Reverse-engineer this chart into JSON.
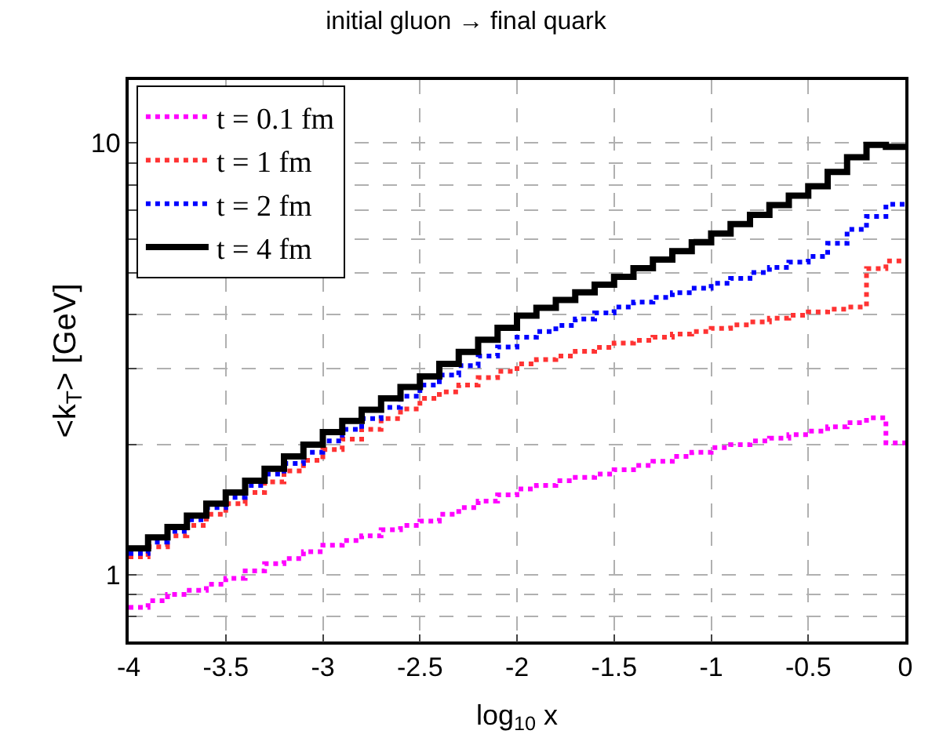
{
  "chart_data": {
    "type": "histogram",
    "title": "initial gluon → final quark",
    "xlabel": "log$_{10}$ x",
    "ylabel": "<k$_{T}$> [GeV]",
    "bins": [
      -4.0,
      -3.9,
      -3.8,
      -3.7,
      -3.6,
      -3.5,
      -3.4,
      -3.3,
      -3.2,
      -3.1,
      -3.0,
      -2.9,
      -2.8,
      -2.7,
      -2.6,
      -2.5,
      -2.4,
      -2.3,
      -2.2,
      -2.1,
      -2.0,
      -1.9,
      -1.8,
      -1.7,
      -1.6,
      -1.5,
      -1.4,
      -1.3,
      -1.2,
      -1.1,
      -1.0,
      -0.9,
      -0.8,
      -0.7,
      -0.6,
      -0.5,
      -0.4,
      -0.3,
      -0.2,
      -0.1,
      0.0
    ],
    "series": [
      {
        "name": "t = 0.1 fm",
        "color": "#ff00ff",
        "line_style": "dotted",
        "values": [
          0.84,
          0.87,
          0.9,
          0.92,
          0.95,
          0.98,
          1.02,
          1.06,
          1.09,
          1.13,
          1.17,
          1.2,
          1.23,
          1.27,
          1.3,
          1.33,
          1.38,
          1.43,
          1.48,
          1.53,
          1.58,
          1.61,
          1.65,
          1.68,
          1.71,
          1.75,
          1.79,
          1.83,
          1.88,
          1.92,
          1.97,
          2.0,
          2.04,
          2.07,
          2.11,
          2.15,
          2.2,
          2.25,
          2.31,
          2.02
        ]
      },
      {
        "name": "t = 1 fm",
        "color": "#ff3333",
        "line_style": "dotted",
        "values": [
          1.1,
          1.16,
          1.23,
          1.3,
          1.38,
          1.46,
          1.55,
          1.64,
          1.74,
          1.84,
          1.95,
          2.06,
          2.17,
          2.3,
          2.42,
          2.56,
          2.65,
          2.75,
          2.86,
          2.96,
          3.08,
          3.15,
          3.21,
          3.29,
          3.36,
          3.44,
          3.49,
          3.55,
          3.61,
          3.66,
          3.72,
          3.79,
          3.85,
          3.93,
          3.99,
          4.06,
          4.12,
          4.17,
          5.12,
          5.33
        ]
      },
      {
        "name": "t = 2 fm",
        "color": "#0000ff",
        "line_style": "dotted",
        "values": [
          1.12,
          1.19,
          1.26,
          1.34,
          1.43,
          1.51,
          1.61,
          1.71,
          1.81,
          1.92,
          2.04,
          2.17,
          2.3,
          2.44,
          2.59,
          2.75,
          2.9,
          3.05,
          3.21,
          3.37,
          3.55,
          3.66,
          3.78,
          3.91,
          4.04,
          4.17,
          4.28,
          4.39,
          4.5,
          4.61,
          4.73,
          4.86,
          5.01,
          5.15,
          5.3,
          5.46,
          5.86,
          6.31,
          6.76,
          7.21
        ]
      },
      {
        "name": "t = 4 fm",
        "color": "#000000",
        "line_style": "solid",
        "values": [
          1.15,
          1.22,
          1.29,
          1.37,
          1.46,
          1.55,
          1.65,
          1.76,
          1.88,
          2.0,
          2.14,
          2.27,
          2.41,
          2.56,
          2.72,
          2.88,
          3.08,
          3.28,
          3.5,
          3.73,
          3.98,
          4.15,
          4.33,
          4.51,
          4.7,
          4.9,
          5.13,
          5.37,
          5.62,
          5.89,
          6.17,
          6.49,
          6.82,
          7.18,
          7.55,
          7.94,
          8.57,
          9.27,
          9.9,
          9.8
        ]
      }
    ],
    "xlim": [
      -4,
      0
    ],
    "xticks": [
      -4,
      -3.5,
      -3,
      -2.5,
      -2,
      -1.5,
      -1,
      -0.5,
      0
    ],
    "ylim": [
      0.7,
      14
    ],
    "log": "y",
    "yticks": [
      {
        "value": 0.7,
        "label": null
      },
      {
        "value": 0.8,
        "label": null
      },
      {
        "value": 0.9,
        "label": null
      },
      1,
      {
        "value": 2,
        "label": null
      },
      {
        "value": 3,
        "label": null
      },
      {
        "value": 4,
        "label": null
      },
      {
        "value": 5,
        "label": null
      },
      {
        "value": 6,
        "label": null
      },
      {
        "value": 7,
        "label": null
      },
      {
        "value": 8,
        "label": null
      },
      {
        "value": 9,
        "label": null
      },
      10
    ],
    "grid": true,
    "legend": "top left"
  }
}
